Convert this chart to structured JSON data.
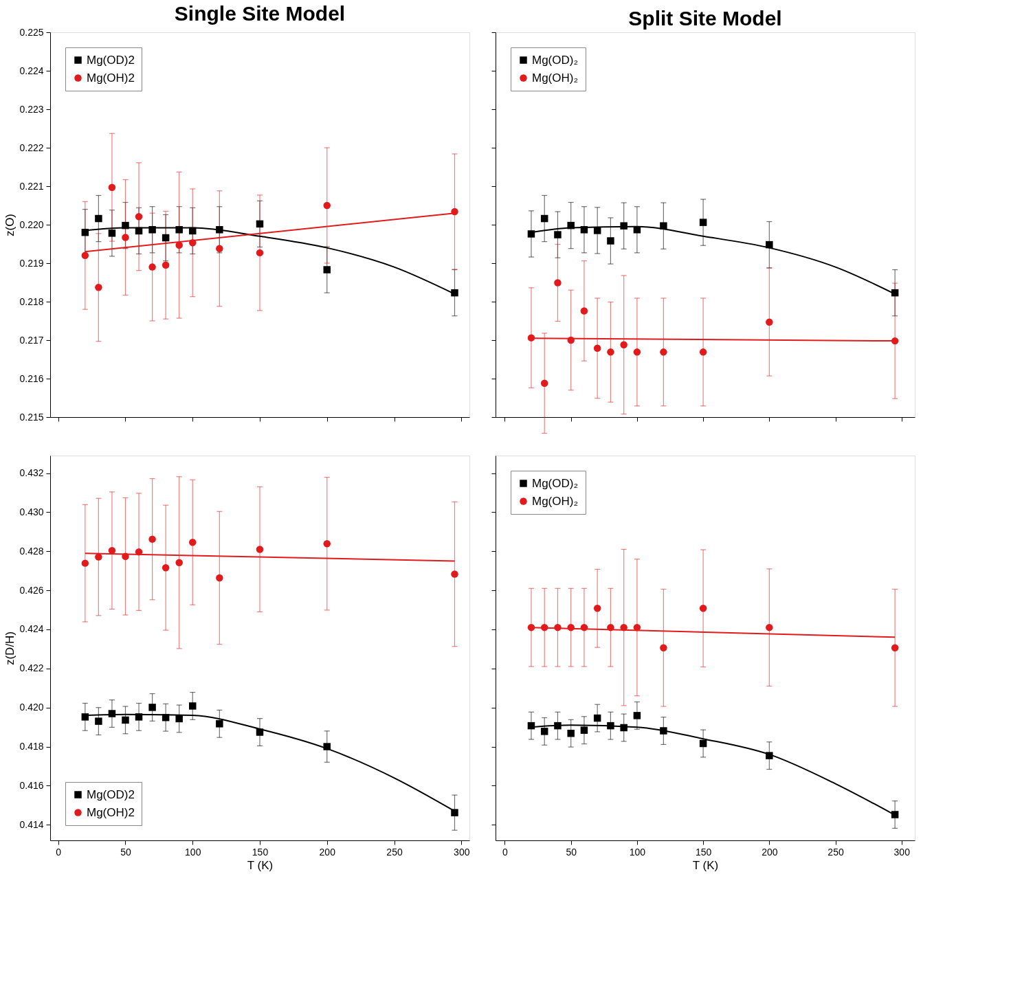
{
  "chart_data": [
    {
      "type": "scatter",
      "title": "Single Site Model",
      "ylabel": "z(O)",
      "xlim": [
        -6,
        306
      ],
      "xticks": [
        0,
        50,
        100,
        150,
        200,
        250,
        300
      ],
      "ylim": [
        0.215,
        0.225
      ],
      "yticks": [
        0.215,
        0.216,
        0.217,
        0.218,
        0.219,
        {
          "value": 0.22,
          "label": "0.220"
        },
        0.221,
        0.222,
        0.223,
        0.224,
        0.225
      ],
      "tick_labels": "y",
      "legend": "top left",
      "series": [
        {
          "name": "Mg(OD)2",
          "color": "#000000",
          "marker": "square",
          "x": [
            20,
            30,
            40,
            50,
            60,
            70,
            80,
            90,
            100,
            120,
            150,
            200,
            295
          ],
          "values": [
            0.2198,
            0.22016,
            0.21978,
            0.21998,
            0.21984,
            0.21987,
            0.21966,
            0.21987,
            0.21984,
            0.21987,
            0.22002,
            0.21883,
            0.21823
          ],
          "errors": [
            0.0006,
            0.0006,
            0.0006,
            0.0006,
            0.0006,
            0.0006,
            0.0006,
            0.0006,
            0.0006,
            0.0006,
            0.0006,
            0.0006,
            0.0006
          ]
        },
        {
          "name": "Mg(OH)2",
          "color": "#e31a1c",
          "marker": "circle",
          "x": [
            20,
            30,
            40,
            50,
            60,
            70,
            80,
            90,
            100,
            120,
            150,
            200,
            295
          ],
          "values": [
            0.2192,
            0.21837,
            0.22097,
            0.21967,
            0.22021,
            0.2189,
            0.21895,
            0.21947,
            0.21953,
            0.21938,
            0.21927,
            0.2205,
            0.22034
          ],
          "errors": [
            0.0014,
            0.0014,
            0.0014,
            0.0015,
            0.0014,
            0.0014,
            0.0014,
            0.0019,
            0.0014,
            0.0015,
            0.0015,
            0.0015,
            0.0015
          ]
        },
        {
          "type": "line",
          "color": "#000000",
          "x": [
            20,
            50,
            100,
            150,
            200,
            250,
            295
          ],
          "values": [
            0.21985,
            0.21992,
            0.21992,
            0.2197,
            0.2194,
            0.2189,
            0.2182
          ]
        },
        {
          "type": "line",
          "color": "#e31a1c",
          "x": [
            20,
            295
          ],
          "values": [
            0.2193,
            0.2203
          ]
        }
      ]
    },
    {
      "type": "scatter",
      "title": "Split Site Model",
      "xlim": [
        -7,
        310
      ],
      "xticks": [
        0,
        50,
        100,
        150,
        200,
        250,
        300
      ],
      "ylim": [
        0.215,
        0.225
      ],
      "yticks": [
        0.215,
        0.216,
        0.217,
        0.218,
        0.219,
        0.22,
        0.221,
        0.222,
        0.223,
        0.224,
        0.225
      ],
      "tick_labels": false,
      "legend": "top left",
      "series": [
        {
          "name": "Mg(OD)₂",
          "color": "#000000",
          "marker": "square",
          "x": [
            20,
            30,
            40,
            50,
            60,
            70,
            80,
            90,
            100,
            120,
            150,
            200,
            295
          ],
          "values": [
            0.21976,
            0.22016,
            0.21974,
            0.21998,
            0.21987,
            0.21985,
            0.21958,
            0.21997,
            0.21987,
            0.21997,
            0.22006,
            0.21948,
            0.21823
          ],
          "errors": [
            0.0006,
            0.0006,
            0.0006,
            0.0006,
            0.0006,
            0.0006,
            0.0006,
            0.0006,
            0.0006,
            0.0006,
            0.0006,
            0.0006,
            0.0006
          ]
        },
        {
          "name": "Mg(OH)₂",
          "color": "#e31a1c",
          "marker": "circle",
          "x": [
            20,
            30,
            40,
            50,
            60,
            70,
            80,
            90,
            100,
            120,
            150,
            200,
            295
          ],
          "values": [
            0.21706,
            0.21588,
            0.21849,
            0.217,
            0.21776,
            0.21679,
            0.21669,
            0.21688,
            0.21669,
            0.21669,
            0.21669,
            0.21747,
            0.21698
          ],
          "errors": [
            0.0013,
            0.0013,
            0.001,
            0.0013,
            0.0013,
            0.0013,
            0.0013,
            0.0018,
            0.0014,
            0.0014,
            0.0014,
            0.0014,
            0.0015
          ]
        },
        {
          "type": "line",
          "color": "#000000",
          "x": [
            20,
            50,
            100,
            150,
            200,
            250,
            295
          ],
          "values": [
            0.2198,
            0.21992,
            0.21995,
            0.2197,
            0.2194,
            0.2189,
            0.2182
          ]
        },
        {
          "type": "line",
          "color": "#e31a1c",
          "x": [
            20,
            295
          ],
          "values": [
            0.21705,
            0.21698
          ]
        }
      ]
    },
    {
      "type": "scatter",
      "xlabel": "T (K)",
      "ylabel": "z(D/H)",
      "xlim": [
        -6,
        306
      ],
      "xticks": [
        0,
        50,
        100,
        150,
        200,
        250,
        300
      ],
      "ylim": [
        0.4132,
        0.4329
      ],
      "yticks": [
        0.414,
        0.416,
        0.418,
        {
          "value": 0.42,
          "label": "0.420"
        },
        0.422,
        0.424,
        0.426,
        0.428,
        {
          "value": 0.43,
          "label": "0.430"
        },
        0.432
      ],
      "legend": "bottom left",
      "series": [
        {
          "name": "Mg(OD)2",
          "color": "#000000",
          "marker": "square",
          "x": [
            20,
            30,
            40,
            50,
            60,
            70,
            80,
            90,
            100,
            120,
            150,
            200,
            295
          ],
          "values": [
            0.41952,
            0.4193,
            0.41969,
            0.41936,
            0.41952,
            0.42001,
            0.41949,
            0.41943,
            0.42008,
            0.41917,
            0.41874,
            0.418,
            0.41462
          ],
          "errors": [
            0.0007,
            0.0007,
            0.0007,
            0.0007,
            0.0007,
            0.0007,
            0.0007,
            0.0007,
            0.0007,
            0.0007,
            0.0007,
            0.0008,
            0.0009
          ]
        },
        {
          "name": "Mg(OH)2",
          "color": "#e31a1c",
          "marker": "circle",
          "x": [
            20,
            30,
            40,
            50,
            60,
            70,
            80,
            90,
            100,
            120,
            150,
            200,
            295
          ],
          "values": [
            0.42739,
            0.42771,
            0.42804,
            0.42774,
            0.42797,
            0.42862,
            0.42716,
            0.42742,
            0.42846,
            0.42664,
            0.4281,
            0.42839,
            0.42683
          ],
          "errors": [
            0.003,
            0.003,
            0.003,
            0.003,
            0.003,
            0.0031,
            0.0032,
            0.0044,
            0.0032,
            0.0034,
            0.0032,
            0.0034,
            0.0037
          ]
        },
        {
          "type": "line",
          "color": "#000000",
          "x": [
            20,
            50,
            100,
            150,
            200,
            250,
            295
          ],
          "values": [
            0.4196,
            0.41965,
            0.4196,
            0.4189,
            0.4179,
            0.4164,
            0.4147
          ]
        },
        {
          "type": "line",
          "color": "#e31a1c",
          "x": [
            20,
            295
          ],
          "values": [
            0.4279,
            0.4275
          ]
        }
      ]
    },
    {
      "type": "scatter",
      "xlabel": "T (K)",
      "xlim": [
        -7,
        310
      ],
      "xticks": [
        0,
        50,
        100,
        150,
        200,
        250,
        300
      ],
      "ylim": [
        0.4132,
        0.4329
      ],
      "yticks": [
        0.414,
        0.416,
        0.418,
        0.42,
        0.422,
        0.424,
        0.426,
        0.428,
        0.43,
        0.432
      ],
      "tick_labels": "x",
      "legend": "top left",
      "series": [
        {
          "name": "Mg(OD)₂",
          "color": "#000000",
          "marker": "square",
          "x": [
            20,
            30,
            40,
            50,
            60,
            70,
            80,
            90,
            100,
            120,
            150,
            200,
            295
          ],
          "values": [
            0.41907,
            0.41878,
            0.41907,
            0.41868,
            0.41884,
            0.41946,
            0.41907,
            0.41897,
            0.41959,
            0.41881,
            0.41816,
            0.41754,
            0.41452
          ],
          "errors": [
            0.0007,
            0.0007,
            0.0007,
            0.0007,
            0.0007,
            0.0007,
            0.0007,
            0.0007,
            0.0007,
            0.0007,
            0.0007,
            0.0007,
            0.0007
          ]
        },
        {
          "name": "Mg(OH)₂",
          "color": "#e31a1c",
          "marker": "circle",
          "x": [
            20,
            30,
            40,
            50,
            60,
            70,
            80,
            90,
            100,
            120,
            150,
            200,
            295
          ],
          "values": [
            0.4241,
            0.4241,
            0.4241,
            0.4241,
            0.4241,
            0.42508,
            0.4241,
            0.4241,
            0.4241,
            0.42306,
            0.42508,
            0.4241,
            0.42306
          ],
          "errors": [
            0.002,
            0.002,
            0.002,
            0.002,
            0.002,
            0.002,
            0.002,
            0.004,
            0.0035,
            0.003,
            0.003,
            0.003,
            0.003
          ]
        },
        {
          "type": "line",
          "color": "#000000",
          "x": [
            20,
            50,
            100,
            150,
            200,
            250,
            295
          ],
          "values": [
            0.419,
            0.4191,
            0.419,
            0.4184,
            0.4176,
            0.4161,
            0.4145
          ]
        },
        {
          "type": "line",
          "color": "#e31a1c",
          "x": [
            20,
            295
          ],
          "values": [
            0.4241,
            0.4236
          ]
        }
      ]
    }
  ]
}
